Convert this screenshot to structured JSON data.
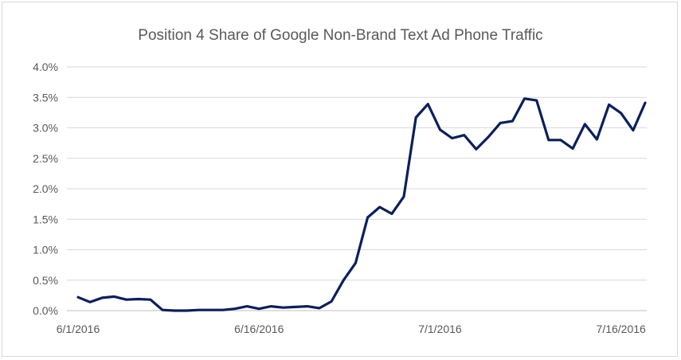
{
  "chart_data": {
    "type": "line",
    "title": "Position 4 Share of Google Non-Brand Text Ad Phone Traffic",
    "xlabel": "",
    "ylabel": "",
    "ylim": [
      0,
      4.0
    ],
    "y_ticks": [
      0,
      0.5,
      1.0,
      1.5,
      2.0,
      2.5,
      3.0,
      3.5,
      4.0
    ],
    "y_tick_labels": [
      "0.0%",
      "0.5%",
      "1.0%",
      "1.5%",
      "2.0%",
      "2.5%",
      "3.0%",
      "3.5%",
      "4.0%"
    ],
    "x_tick_labels": [
      "6/1/2016",
      "6/16/2016",
      "7/1/2016",
      "7/16/2016"
    ],
    "x_ticks": [
      "2016-06-01",
      "2016-06-16",
      "2016-07-01",
      "2016-07-16"
    ],
    "x_range": [
      "2016-06-01",
      "2016-07-18"
    ],
    "grid": true,
    "line_color": "#0b1f5c",
    "series": [
      {
        "name": "",
        "x": [
          "2016-06-01",
          "2016-06-02",
          "2016-06-03",
          "2016-06-04",
          "2016-06-05",
          "2016-06-06",
          "2016-06-07",
          "2016-06-08",
          "2016-06-09",
          "2016-06-10",
          "2016-06-11",
          "2016-06-12",
          "2016-06-13",
          "2016-06-14",
          "2016-06-15",
          "2016-06-16",
          "2016-06-17",
          "2016-06-18",
          "2016-06-19",
          "2016-06-20",
          "2016-06-21",
          "2016-06-22",
          "2016-06-23",
          "2016-06-24",
          "2016-06-25",
          "2016-06-26",
          "2016-06-27",
          "2016-06-28",
          "2016-06-29",
          "2016-06-30",
          "2016-07-01",
          "2016-07-02",
          "2016-07-03",
          "2016-07-04",
          "2016-07-05",
          "2016-07-06",
          "2016-07-07",
          "2016-07-08",
          "2016-07-09",
          "2016-07-10",
          "2016-07-11",
          "2016-07-12",
          "2016-07-13",
          "2016-07-14",
          "2016-07-15",
          "2016-07-16",
          "2016-07-17",
          "2016-07-18"
        ],
        "values": [
          0.22,
          0.14,
          0.21,
          0.23,
          0.18,
          0.19,
          0.18,
          0.01,
          0.0,
          0.0,
          0.01,
          0.01,
          0.01,
          0.03,
          0.07,
          0.03,
          0.07,
          0.05,
          0.06,
          0.07,
          0.04,
          0.15,
          0.5,
          0.78,
          1.53,
          1.7,
          1.59,
          1.87,
          3.17,
          3.39,
          2.97,
          2.83,
          2.88,
          2.65,
          2.85,
          3.08,
          3.11,
          3.48,
          3.45,
          2.8,
          2.8,
          2.66,
          3.06,
          2.81,
          3.38,
          3.24,
          2.96,
          3.41
        ]
      }
    ]
  }
}
